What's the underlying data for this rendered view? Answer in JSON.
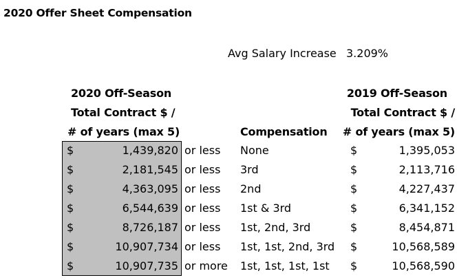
{
  "sheet": {
    "title": "2020 Offer Sheet Compensation",
    "avg_label": "Avg Salary Increase",
    "avg_value": "3.209%"
  },
  "headers": {
    "col2020": [
      "2020 Off-Season",
      "Total Contract $ /",
      "# of years (max 5)"
    ],
    "comp": "Compensation",
    "col2019": [
      "2019 Off-Season",
      "Total Contract $ /",
      "# of years (max 5)"
    ]
  },
  "rows": [
    {
      "cur": "$",
      "amt2020": "1,439,820",
      "qual": "or less",
      "comp": "None",
      "cur2": "$",
      "amt2019": "1,395,053"
    },
    {
      "cur": "$",
      "amt2020": "2,181,545",
      "qual": "or less",
      "comp": "3rd",
      "cur2": "$",
      "amt2019": "2,113,716"
    },
    {
      "cur": "$",
      "amt2020": "4,363,095",
      "qual": "or less",
      "comp": "2nd",
      "cur2": "$",
      "amt2019": "4,227,437"
    },
    {
      "cur": "$",
      "amt2020": "6,544,639",
      "qual": "or less",
      "comp": "1st & 3rd",
      "cur2": "$",
      "amt2019": "6,341,152"
    },
    {
      "cur": "$",
      "amt2020": "8,726,187",
      "qual": "or less",
      "comp": "1st, 2nd, 3rd",
      "cur2": "$",
      "amt2019": "8,454,871"
    },
    {
      "cur": "$",
      "amt2020": "10,907,734",
      "qual": "or less",
      "comp": "1st, 1st, 2nd, 3rd",
      "cur2": "$",
      "amt2019": "10,568,589"
    },
    {
      "cur": "$",
      "amt2020": "10,907,735",
      "qual": "or more",
      "comp": "1st, 1st, 1st, 1st",
      "cur2": "$",
      "amt2019": "10,568,590"
    }
  ]
}
